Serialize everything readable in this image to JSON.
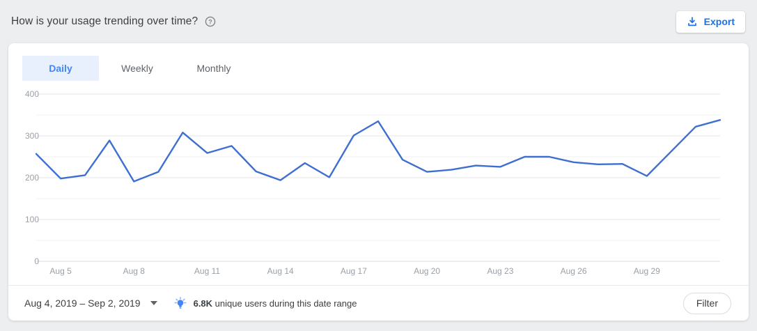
{
  "header": {
    "title": "How is your usage trending over time?",
    "help_icon": "help-circle",
    "export_label": "Export"
  },
  "tabs": [
    {
      "label": "Daily",
      "active": true
    },
    {
      "label": "Weekly",
      "active": false
    },
    {
      "label": "Monthly",
      "active": false
    }
  ],
  "chart_data": {
    "type": "line",
    "title": "Daily usage trend",
    "x": [
      "Aug 4",
      "Aug 5",
      "Aug 6",
      "Aug 7",
      "Aug 8",
      "Aug 9",
      "Aug 10",
      "Aug 11",
      "Aug 12",
      "Aug 13",
      "Aug 14",
      "Aug 15",
      "Aug 16",
      "Aug 17",
      "Aug 18",
      "Aug 19",
      "Aug 20",
      "Aug 21",
      "Aug 22",
      "Aug 23",
      "Aug 24",
      "Aug 25",
      "Aug 26",
      "Aug 27",
      "Aug 28",
      "Aug 29",
      "Aug 30",
      "Aug 31",
      "Sep 1"
    ],
    "values": [
      257,
      198,
      206,
      289,
      191,
      214,
      308,
      259,
      276,
      215,
      194,
      235,
      201,
      301,
      335,
      243,
      214,
      219,
      229,
      226,
      250,
      250,
      237,
      232,
      233,
      204,
      263,
      322,
      338
    ],
    "x_tick_labels": [
      "Aug 5",
      "Aug 8",
      "Aug 11",
      "Aug 14",
      "Aug 17",
      "Aug 20",
      "Aug 23",
      "Aug 26",
      "Aug 29"
    ],
    "y_ticks": [
      0,
      100,
      200,
      300,
      400
    ],
    "y_minor_step": 50,
    "ylim": [
      0,
      400
    ],
    "grid": true,
    "legend": "none",
    "line_color": "#3e6fd0"
  },
  "footer": {
    "date_range": "Aug 4, 2019 – Sep 2, 2019",
    "insight_icon": "lightbulb",
    "insight_value": "6.8K",
    "insight_text": " unique users during this date range",
    "filter_label": "Filter"
  },
  "colors": {
    "accent_blue": "#1a73e8",
    "tab_active_bg": "#e8f0fe",
    "tab_active_text": "#4285f4",
    "line": "#3e6fd0",
    "page_bg": "#eceef0",
    "tick_label": "#9aa0a6"
  }
}
